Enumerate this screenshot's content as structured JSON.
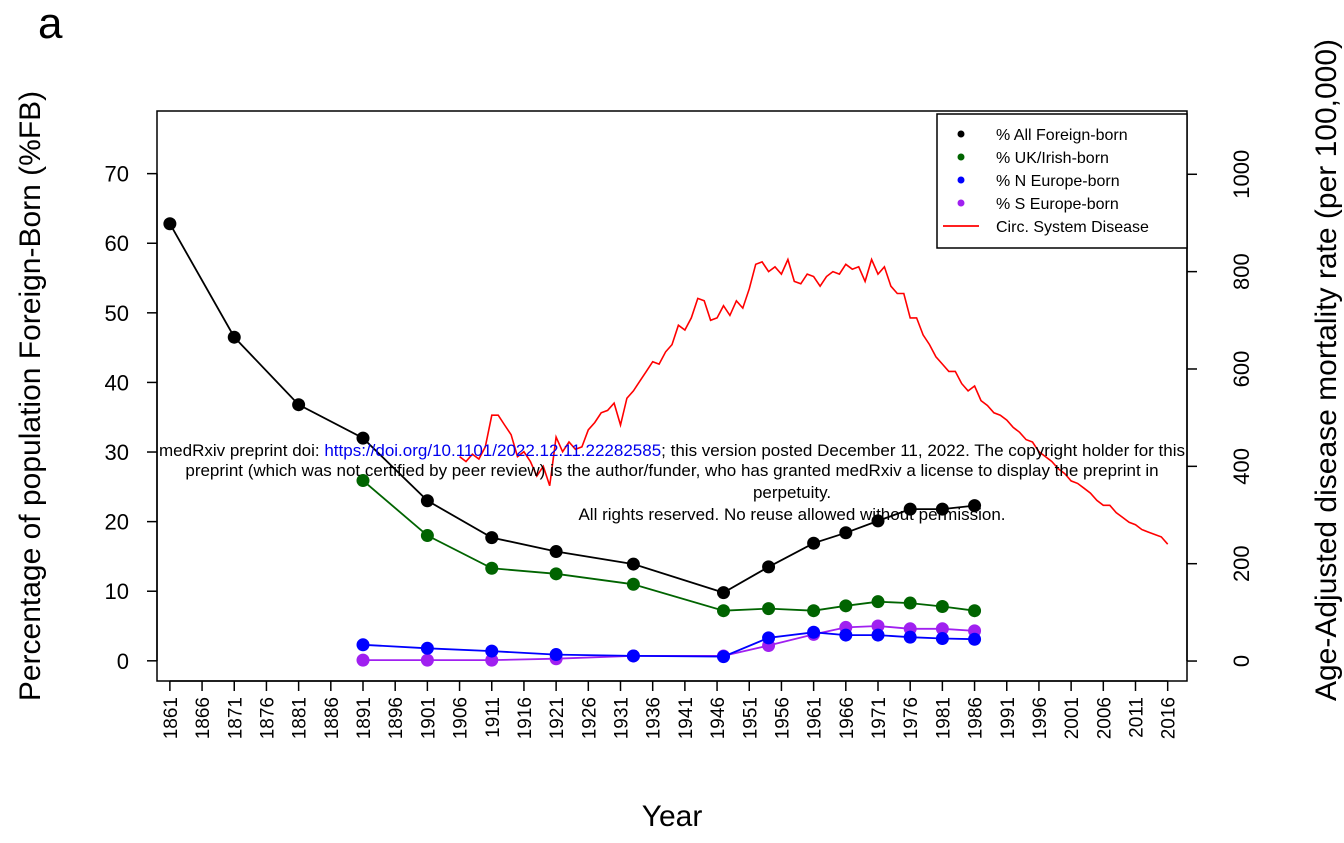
{
  "panel_label": "a",
  "watermark": {
    "line1_prefix": "medRxiv preprint doi: ",
    "line1_link": "https://doi.org/10.1101/2022.12.11.22282585",
    "line1_suffix": "; this version posted December 11, 2022. The copyright holder for this",
    "line2": "preprint (which was not certified by peer review) is the author/funder, who has granted medRxiv a license to display the preprint in",
    "line3": "perpetuity.",
    "line4": "All rights reserved. No reuse allowed without permission."
  },
  "chart_data": {
    "type": "line",
    "xlabel": "Year",
    "ylabel_left": "Percentage of population Foreign-Born (%FB)",
    "ylabel_right": "Age-Adjusted disease mortality rate (per 100,000)",
    "xlim": [
      1859,
      2019
    ],
    "ylim_left": [
      -2.9,
      79
    ],
    "ylim_right": [
      -41,
      1130
    ],
    "x_ticks": [
      1861,
      1866,
      1871,
      1876,
      1881,
      1886,
      1891,
      1896,
      1901,
      1906,
      1911,
      1916,
      1921,
      1926,
      1931,
      1936,
      1941,
      1946,
      1951,
      1956,
      1961,
      1966,
      1971,
      1976,
      1981,
      1986,
      1991,
      1996,
      2001,
      2006,
      2011,
      2016
    ],
    "y_ticks_left": [
      0,
      10,
      20,
      30,
      40,
      50,
      60,
      70
    ],
    "y_ticks_right": [
      0,
      200,
      400,
      600,
      800,
      1000
    ],
    "legend": {
      "position": "top-right"
    },
    "series": [
      {
        "name": "% All Foreign-born",
        "axis": "left",
        "color": "#000000",
        "markers": true,
        "x": [
          1861,
          1871,
          1881,
          1891,
          1901,
          1911,
          1921,
          1933,
          1947,
          1954,
          1961,
          1966,
          1971,
          1976,
          1981,
          1986
        ],
        "y": [
          62.8,
          46.5,
          36.8,
          32.0,
          23.0,
          17.7,
          15.7,
          13.9,
          9.8,
          13.5,
          16.9,
          18.4,
          20.1,
          21.8,
          21.8,
          22.3
        ]
      },
      {
        "name": "% UK/Irish-born",
        "axis": "left",
        "color": "#006400",
        "markers": true,
        "x": [
          1891,
          1901,
          1911,
          1921,
          1933,
          1947,
          1954,
          1961,
          1966,
          1971,
          1976,
          1981,
          1986
        ],
        "y": [
          25.9,
          18.0,
          13.3,
          12.5,
          11.0,
          7.2,
          7.5,
          7.2,
          7.9,
          8.5,
          8.3,
          7.8,
          7.2
        ]
      },
      {
        "name": "% N Europe-born",
        "axis": "left",
        "color": "#0000ff",
        "markers": true,
        "x": [
          1891,
          1901,
          1911,
          1921,
          1933,
          1947,
          1954,
          1961,
          1966,
          1971,
          1976,
          1981,
          1986
        ],
        "y": [
          2.3,
          1.8,
          1.4,
          0.9,
          0.7,
          0.6,
          3.3,
          4.1,
          3.7,
          3.7,
          3.4,
          3.2,
          3.1
        ]
      },
      {
        "name": "% S Europe-born",
        "axis": "left",
        "color": "#a020f0",
        "markers": true,
        "x": [
          1891,
          1901,
          1911,
          1921,
          1933,
          1947,
          1954,
          1961,
          1966,
          1971,
          1976,
          1981,
          1986
        ],
        "y": [
          0.1,
          0.1,
          0.1,
          0.3,
          0.7,
          0.7,
          2.2,
          3.8,
          4.8,
          5.0,
          4.6,
          4.6,
          4.3
        ]
      },
      {
        "name": "Circ. System Disease",
        "axis": "right",
        "color": "#ff0000",
        "markers": false,
        "x": [
          1906,
          1907,
          1908,
          1909,
          1910,
          1911,
          1912,
          1913,
          1914,
          1915,
          1916,
          1917,
          1918,
          1919,
          1920,
          1921,
          1922,
          1923,
          1924,
          1925,
          1926,
          1927,
          1928,
          1929,
          1930,
          1931,
          1932,
          1933,
          1934,
          1935,
          1936,
          1937,
          1938,
          1939,
          1940,
          1941,
          1942,
          1943,
          1944,
          1945,
          1946,
          1947,
          1948,
          1949,
          1950,
          1951,
          1952,
          1953,
          1954,
          1955,
          1956,
          1957,
          1958,
          1959,
          1960,
          1961,
          1962,
          1963,
          1964,
          1965,
          1966,
          1967,
          1968,
          1969,
          1970,
          1971,
          1972,
          1973,
          1974,
          1975,
          1976,
          1977,
          1978,
          1979,
          1980,
          1981,
          1982,
          1983,
          1984,
          1985,
          1986,
          1987,
          1988,
          1989,
          1990,
          1991,
          1992,
          1993,
          1994,
          1995,
          1996,
          1997,
          1998,
          1999,
          2000,
          2001,
          2002,
          2003,
          2004,
          2005,
          2006,
          2007,
          2008,
          2009,
          2010,
          2011,
          2012,
          2013,
          2014,
          2015,
          2016
        ],
        "y": [
          420,
          410,
          425,
          415,
          440,
          505,
          505,
          485,
          465,
          420,
          430,
          410,
          380,
          400,
          360,
          460,
          430,
          450,
          435,
          440,
          475,
          490,
          510,
          515,
          530,
          485,
          540,
          555,
          575,
          595,
          615,
          610,
          635,
          650,
          690,
          680,
          705,
          745,
          740,
          700,
          705,
          730,
          710,
          740,
          725,
          765,
          815,
          820,
          800,
          810,
          795,
          825,
          780,
          775,
          795,
          790,
          770,
          790,
          800,
          795,
          815,
          805,
          810,
          780,
          825,
          795,
          810,
          770,
          755,
          755,
          705,
          705,
          670,
          650,
          625,
          610,
          595,
          595,
          570,
          555,
          565,
          535,
          525,
          510,
          505,
          495,
          480,
          470,
          455,
          450,
          430,
          420,
          410,
          395,
          385,
          370,
          365,
          355,
          345,
          330,
          320,
          320,
          305,
          295,
          285,
          280,
          270,
          265,
          260,
          255,
          240
        ]
      }
    ]
  }
}
